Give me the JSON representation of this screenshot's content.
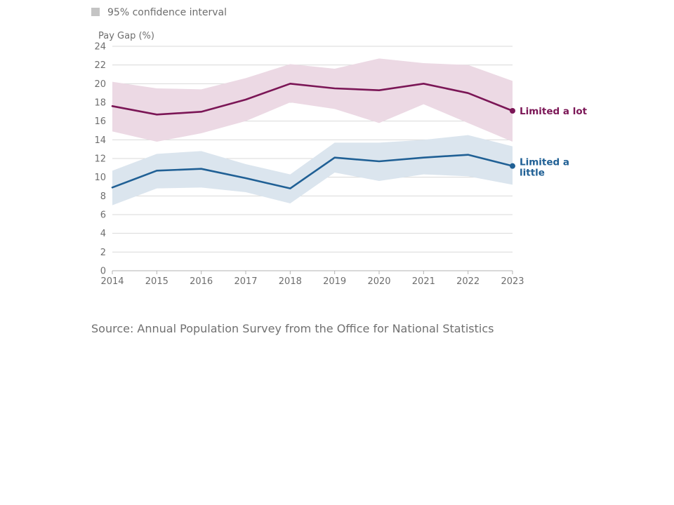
{
  "chart_data": {
    "type": "line",
    "ylabel": "Pay Gap (%)",
    "xlabel": "",
    "ylim": [
      0,
      24
    ],
    "yticks": [
      0,
      2,
      4,
      6,
      8,
      10,
      12,
      14,
      16,
      18,
      20,
      22,
      24
    ],
    "x": [
      2014,
      2015,
      2016,
      2017,
      2018,
      2019,
      2020,
      2021,
      2022,
      2023
    ],
    "grid": true,
    "legend": {
      "position": "top-left",
      "entries": [
        "95% confidence interval"
      ]
    },
    "series": [
      {
        "name": "Limited a lot",
        "label_lines": [
          "Limited a lot"
        ],
        "color": "#7b1656",
        "band_color": "#ecd9e4",
        "values": [
          17.6,
          16.7,
          17.0,
          18.3,
          20.0,
          19.5,
          19.3,
          20.0,
          19.0,
          17.1
        ],
        "ci_lower": [
          14.9,
          13.8,
          14.7,
          16.0,
          18.0,
          17.3,
          15.8,
          17.8,
          15.8,
          13.8
        ],
        "ci_upper": [
          20.2,
          19.5,
          19.4,
          20.6,
          22.1,
          21.6,
          22.7,
          22.2,
          22.0,
          20.3
        ]
      },
      {
        "name": "Limited a little",
        "label_lines": [
          "Limited a",
          "little"
        ],
        "color": "#206095",
        "band_color": "#dbe5ee",
        "values": [
          8.9,
          10.7,
          10.9,
          9.9,
          8.8,
          12.1,
          11.7,
          12.1,
          12.4,
          11.2
        ],
        "ci_lower": [
          7.0,
          8.8,
          8.9,
          8.4,
          7.2,
          10.5,
          9.6,
          10.3,
          10.1,
          9.2
        ],
        "ci_upper": [
          10.7,
          12.5,
          12.8,
          11.4,
          10.3,
          13.7,
          13.7,
          14.0,
          14.5,
          13.3
        ]
      }
    ]
  },
  "source": "Source: Annual Population Survey from the Office for National Statistics"
}
